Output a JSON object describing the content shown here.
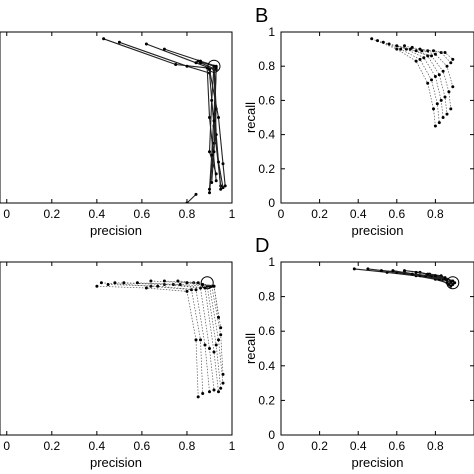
{
  "chart_data": [
    {
      "panel_label": "",
      "type": "line",
      "xlabel": "precision",
      "ylabel": "",
      "xticks": [
        "0",
        "0.2",
        "0.4",
        "0.6",
        "0.8",
        "1"
      ],
      "yticks": [],
      "xlim": [
        -0.03,
        1.0
      ],
      "ylim": [
        0.0,
        1.0
      ],
      "grid": false,
      "series": [
        {
          "x": [
            0.43,
            0.75,
            0.89,
            0.9,
            0.93
          ],
          "y": [
            0.96,
            0.81,
            0.79,
            0.5,
            0.13
          ]
        },
        {
          "x": [
            0.5,
            0.8,
            0.9,
            0.92,
            0.95
          ],
          "y": [
            0.94,
            0.8,
            0.76,
            0.45,
            0.1
          ]
        },
        {
          "x": [
            0.62,
            0.84,
            0.92,
            0.93,
            0.95
          ],
          "y": [
            0.93,
            0.82,
            0.78,
            0.4,
            0.08
          ]
        },
        {
          "x": [
            0.7,
            0.86,
            0.93,
            0.92,
            0.9
          ],
          "y": [
            0.9,
            0.83,
            0.8,
            0.35,
            0.06
          ]
        },
        {
          "x": [
            0.85,
            0.92,
            0.93,
            0.92,
            0.91
          ],
          "y": [
            0.83,
            0.8,
            0.55,
            0.3,
            0.12
          ]
        },
        {
          "x": [
            0.86,
            0.93,
            0.92,
            0.91,
            0.9
          ],
          "y": [
            0.82,
            0.78,
            0.52,
            0.28,
            0.08
          ]
        },
        {
          "x": [
            0.92,
            0.91,
            0.9,
            0.93
          ],
          "y": [
            0.8,
            0.6,
            0.3,
            0.17
          ]
        },
        {
          "x": [
            0.93,
            0.92,
            0.94,
            0.96
          ],
          "y": [
            0.79,
            0.48,
            0.24,
            0.09
          ]
        },
        {
          "x": [
            0.9,
            0.94,
            0.96,
            0.97
          ],
          "y": [
            0.78,
            0.5,
            0.23,
            0.1
          ]
        },
        {
          "x": [
            0.8,
            0.84
          ],
          "y": [
            0.0,
            0.05
          ]
        }
      ]
    },
    {
      "panel_label": "B",
      "type": "line",
      "xlabel": "precision",
      "ylabel": "recall",
      "xticks": [
        "0",
        "0.2",
        "0.4",
        "0.6",
        "0.8"
      ],
      "yticks": [
        "0",
        "0.2",
        "0.4",
        "0.6",
        "0.8",
        "1"
      ],
      "xlim": [
        0.0,
        1.0
      ],
      "ylim": [
        0.0,
        1.0
      ],
      "grid": false,
      "series": [
        {
          "x": [
            0.47,
            0.6,
            0.7,
            0.76,
            0.79,
            0.8
          ],
          "y": [
            0.96,
            0.9,
            0.83,
            0.7,
            0.55,
            0.45
          ]
        },
        {
          "x": [
            0.5,
            0.62,
            0.72,
            0.78,
            0.81,
            0.82
          ],
          "y": [
            0.95,
            0.9,
            0.84,
            0.72,
            0.58,
            0.47
          ]
        },
        {
          "x": [
            0.53,
            0.65,
            0.74,
            0.8,
            0.83,
            0.84
          ],
          "y": [
            0.94,
            0.9,
            0.85,
            0.74,
            0.6,
            0.5
          ]
        },
        {
          "x": [
            0.56,
            0.67,
            0.76,
            0.82,
            0.85,
            0.86
          ],
          "y": [
            0.93,
            0.9,
            0.86,
            0.75,
            0.62,
            0.52
          ]
        },
        {
          "x": [
            0.6,
            0.7,
            0.78,
            0.84,
            0.87,
            0.88
          ],
          "y": [
            0.92,
            0.89,
            0.86,
            0.77,
            0.65,
            0.55
          ]
        },
        {
          "x": [
            0.64,
            0.73,
            0.8,
            0.86,
            0.89
          ],
          "y": [
            0.92,
            0.89,
            0.87,
            0.8,
            0.68
          ]
        },
        {
          "x": [
            0.68,
            0.76,
            0.83,
            0.88
          ],
          "y": [
            0.91,
            0.89,
            0.88,
            0.82
          ]
        },
        {
          "x": [
            0.72,
            0.79,
            0.85,
            0.89
          ],
          "y": [
            0.9,
            0.89,
            0.88,
            0.84
          ]
        }
      ]
    },
    {
      "panel_label": "",
      "type": "line",
      "xlabel": "precision",
      "ylabel": "",
      "xticks": [
        "0",
        "0.2",
        "0.4",
        "0.6",
        "0.8",
        "1"
      ],
      "yticks": [],
      "xlim": [
        -0.03,
        1.0
      ],
      "ylim": [
        0.0,
        1.0
      ],
      "grid": false,
      "series": [
        {
          "x": [
            0.4,
            0.62,
            0.8,
            0.84,
            0.85
          ],
          "y": [
            0.86,
            0.85,
            0.83,
            0.55,
            0.22
          ]
        },
        {
          "x": [
            0.42,
            0.64,
            0.82,
            0.86,
            0.87
          ],
          "y": [
            0.88,
            0.86,
            0.84,
            0.55,
            0.24
          ]
        },
        {
          "x": [
            0.45,
            0.67,
            0.84,
            0.88,
            0.9
          ],
          "y": [
            0.87,
            0.86,
            0.84,
            0.52,
            0.25
          ]
        },
        {
          "x": [
            0.48,
            0.7,
            0.86,
            0.9,
            0.92
          ],
          "y": [
            0.88,
            0.87,
            0.85,
            0.5,
            0.26
          ]
        },
        {
          "x": [
            0.52,
            0.74,
            0.88,
            0.92,
            0.94
          ],
          "y": [
            0.88,
            0.87,
            0.85,
            0.48,
            0.25
          ]
        },
        {
          "x": [
            0.58,
            0.77,
            0.89,
            0.93,
            0.95
          ],
          "y": [
            0.88,
            0.87,
            0.86,
            0.52,
            0.27
          ]
        },
        {
          "x": [
            0.64,
            0.8,
            0.9,
            0.94,
            0.96
          ],
          "y": [
            0.89,
            0.88,
            0.86,
            0.55,
            0.3
          ]
        },
        {
          "x": [
            0.7,
            0.83,
            0.91,
            0.95,
            0.96
          ],
          "y": [
            0.89,
            0.88,
            0.86,
            0.58,
            0.35
          ]
        },
        {
          "x": [
            0.76,
            0.85,
            0.92,
            0.95
          ],
          "y": [
            0.89,
            0.88,
            0.86,
            0.62
          ]
        },
        {
          "x": [
            0.8,
            0.87,
            0.92,
            0.94
          ],
          "y": [
            0.88,
            0.87,
            0.86,
            0.68
          ]
        }
      ]
    },
    {
      "panel_label": "D",
      "type": "line",
      "xlabel": "precision",
      "ylabel": "recall",
      "xticks": [
        "0",
        "0.2",
        "0.4",
        "0.6",
        "0.8"
      ],
      "yticks": [
        "0",
        "0.2",
        "0.4",
        "0.6",
        "0.8",
        "1"
      ],
      "xlim": [
        0.0,
        1.0
      ],
      "ylim": [
        0.0,
        1.0
      ],
      "grid": false,
      "series": [
        {
          "x": [
            0.38,
            0.55,
            0.7,
            0.8,
            0.86,
            0.88
          ],
          "y": [
            0.96,
            0.94,
            0.92,
            0.9,
            0.88,
            0.86
          ]
        },
        {
          "x": [
            0.45,
            0.6,
            0.72,
            0.82,
            0.87
          ],
          "y": [
            0.96,
            0.94,
            0.92,
            0.9,
            0.87
          ]
        },
        {
          "x": [
            0.52,
            0.64,
            0.75,
            0.84,
            0.88
          ],
          "y": [
            0.95,
            0.94,
            0.92,
            0.9,
            0.88
          ]
        },
        {
          "x": [
            0.58,
            0.68,
            0.78,
            0.85,
            0.89
          ],
          "y": [
            0.95,
            0.93,
            0.92,
            0.9,
            0.87
          ]
        },
        {
          "x": [
            0.64,
            0.72,
            0.8,
            0.86,
            0.9
          ],
          "y": [
            0.95,
            0.94,
            0.92,
            0.9,
            0.88
          ]
        },
        {
          "x": [
            0.7,
            0.77,
            0.83,
            0.88
          ],
          "y": [
            0.94,
            0.93,
            0.92,
            0.89
          ]
        },
        {
          "x": [
            0.76,
            0.8,
            0.85,
            0.89
          ],
          "y": [
            0.93,
            0.92,
            0.91,
            0.89
          ]
        }
      ]
    }
  ]
}
